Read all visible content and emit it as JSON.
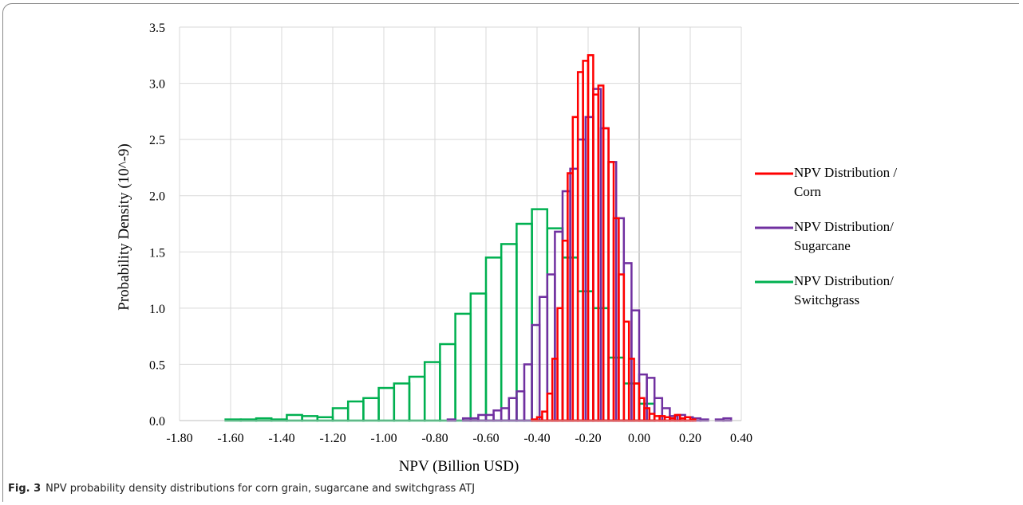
{
  "caption": {
    "label": "Fig. 3",
    "text": "NPV probability density distributions for corn grain, sugarcane and switchgrass ATJ"
  },
  "chart_data": {
    "type": "histogram",
    "title": "",
    "xlabel": "NPV (Billion USD)",
    "ylabel": "Probability Density (10^-9)",
    "xlim": [
      -1.8,
      0.4
    ],
    "ylim": [
      0,
      3.5
    ],
    "xticks": [
      "-1.80",
      "-1.60",
      "-1.40",
      "-1.20",
      "-1.00",
      "-0.80",
      "-0.60",
      "-0.40",
      "-0.20",
      "0.00",
      "0.20",
      "0.40"
    ],
    "yticks": [
      "0.0",
      "0.5",
      "1.0",
      "1.5",
      "2.0",
      "2.5",
      "3.0",
      "3.5"
    ],
    "grid": "vertical and horizontal",
    "legend_position": "right",
    "series": [
      {
        "name": "NPV Distribution / Corn",
        "legend_lines": [
          "NPV Distribution /",
          "Corn"
        ],
        "color": "#ff0000",
        "bin_edges": [
          -0.42,
          -0.4,
          -0.38,
          -0.36,
          -0.34,
          -0.32,
          -0.3,
          -0.28,
          -0.26,
          -0.24,
          -0.22,
          -0.2,
          -0.18,
          -0.16,
          -0.14,
          -0.12,
          -0.1,
          -0.08,
          -0.06,
          -0.04,
          -0.02,
          0.0,
          0.02,
          0.04,
          0.06,
          0.08,
          0.1,
          0.12,
          0.14,
          0.16,
          0.18,
          0.2,
          0.22
        ],
        "values": [
          0.01,
          0.03,
          0.08,
          0.24,
          0.55,
          1.0,
          1.6,
          2.2,
          2.7,
          3.1,
          3.2,
          3.25,
          2.9,
          2.98,
          2.6,
          2.3,
          1.8,
          1.3,
          0.88,
          0.55,
          0.33,
          0.2,
          0.11,
          0.06,
          0.04,
          0.04,
          0.03,
          0.02,
          0.05,
          0.02,
          0.03,
          0.01
        ]
      },
      {
        "name": "NPV Distribution/ Sugarcane",
        "legend_lines": [
          "NPV Distribution/",
          "Sugarcane"
        ],
        "color": "#7030a0",
        "bin_edges": [
          -0.75,
          -0.72,
          -0.69,
          -0.66,
          -0.63,
          -0.6,
          -0.57,
          -0.54,
          -0.51,
          -0.48,
          -0.45,
          -0.42,
          -0.39,
          -0.36,
          -0.33,
          -0.3,
          -0.27,
          -0.24,
          -0.21,
          -0.18,
          -0.15,
          -0.12,
          -0.09,
          -0.06,
          -0.03,
          0.0,
          0.03,
          0.06,
          0.09,
          0.12,
          0.15,
          0.18,
          0.21,
          0.24,
          0.27,
          0.3,
          0.33,
          0.36
        ],
        "values": [
          0.01,
          0.0,
          0.02,
          0.02,
          0.05,
          0.05,
          0.09,
          0.11,
          0.2,
          0.26,
          0.5,
          0.85,
          1.1,
          1.3,
          1.68,
          2.04,
          2.24,
          2.5,
          2.7,
          2.95,
          2.6,
          2.3,
          1.8,
          1.4,
          0.98,
          0.41,
          0.38,
          0.2,
          0.11,
          0.04,
          0.05,
          0.03,
          0.02,
          0.01,
          0.0,
          0.01,
          0.02
        ]
      },
      {
        "name": "NPV Distribution/ Switchgrass",
        "legend_lines": [
          "NPV Distribution/",
          "Switchgrass"
        ],
        "color": "#00b050",
        "bin_edges": [
          -1.8,
          -1.74,
          -1.68,
          -1.62,
          -1.56,
          -1.5,
          -1.44,
          -1.38,
          -1.32,
          -1.26,
          -1.2,
          -1.14,
          -1.08,
          -1.02,
          -0.96,
          -0.9,
          -0.84,
          -0.78,
          -0.72,
          -0.66,
          -0.6,
          -0.54,
          -0.48,
          -0.42,
          -0.36,
          -0.3,
          -0.24,
          -0.18,
          -0.12,
          -0.06,
          0.0,
          0.06
        ],
        "values": [
          0.0,
          0.0,
          0.0,
          0.01,
          0.01,
          0.02,
          0.01,
          0.05,
          0.04,
          0.03,
          0.11,
          0.17,
          0.2,
          0.29,
          0.33,
          0.39,
          0.52,
          0.68,
          0.95,
          1.13,
          1.45,
          1.57,
          1.75,
          1.88,
          1.71,
          1.45,
          1.15,
          1.0,
          0.56,
          0.33,
          0.15,
          0.07
        ]
      }
    ]
  }
}
